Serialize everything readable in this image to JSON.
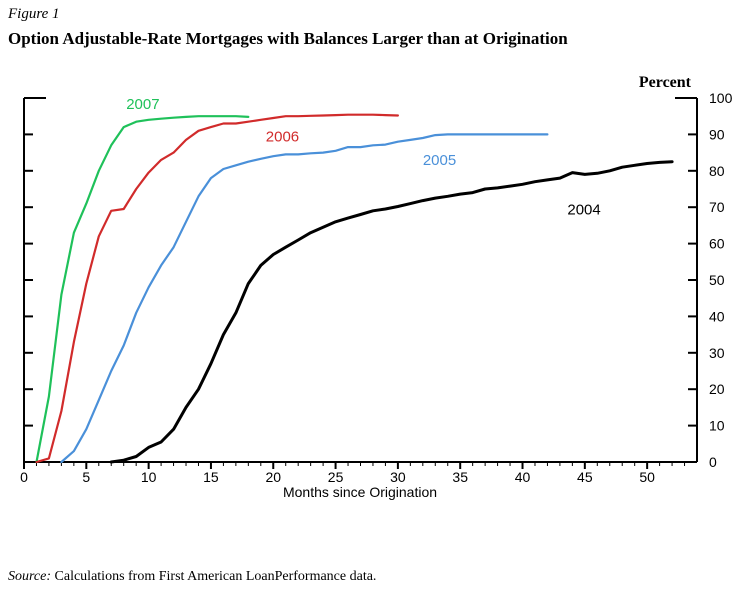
{
  "figure_label": "Figure 1",
  "title": "Option Adjustable-Rate Mortgages with Balances Larger than at Origination",
  "source": {
    "label": "Source:",
    "text": "Calculations from First American LoanPerformance data."
  },
  "chart_data": {
    "type": "line",
    "title": "Option Adjustable-Rate Mortgages with Balances Larger than at Origination",
    "xlabel": "Months since Origination",
    "ylabel": "Percent",
    "xlim": [
      0,
      54
    ],
    "ylim": [
      0,
      100
    ],
    "x_ticks": [
      0,
      5,
      10,
      15,
      20,
      25,
      30,
      35,
      40,
      45,
      50
    ],
    "y_ticks": [
      0,
      10,
      20,
      30,
      40,
      50,
      60,
      70,
      80,
      90,
      100
    ],
    "grid": false,
    "legend": "none (direct labels)",
    "series": [
      {
        "name": "2007",
        "color": "#1fc15a",
        "x": [
          1,
          2,
          3,
          4,
          5,
          6,
          7,
          8,
          9,
          10,
          11,
          12,
          13,
          14,
          15,
          16,
          17,
          18
        ],
        "y": [
          0,
          18,
          46,
          63,
          71,
          80,
          87,
          92,
          93.5,
          94,
          94.3,
          94.6,
          94.8,
          95,
          95,
          95,
          95,
          94.8
        ]
      },
      {
        "name": "2006",
        "color": "#d12b2b",
        "x": [
          1,
          2,
          3,
          4,
          5,
          6,
          7,
          8,
          9,
          10,
          11,
          12,
          13,
          14,
          15,
          16,
          17,
          18,
          19,
          20,
          21,
          22,
          23,
          24,
          25,
          26,
          27,
          28,
          29,
          30
        ],
        "y": [
          0,
          1,
          14,
          33,
          49,
          62,
          69,
          69.5,
          75,
          79.5,
          83,
          85,
          88.5,
          91,
          92,
          93,
          93,
          93.5,
          94,
          94.5,
          95,
          95,
          95.1,
          95.2,
          95.3,
          95.4,
          95.4,
          95.4,
          95.3,
          95.2
        ]
      },
      {
        "name": "2005",
        "color": "#4a90d9",
        "x": [
          3,
          4,
          5,
          6,
          7,
          8,
          9,
          10,
          11,
          12,
          13,
          14,
          15,
          16,
          17,
          18,
          19,
          20,
          21,
          22,
          23,
          24,
          25,
          26,
          27,
          28,
          29,
          30,
          31,
          32,
          33,
          34,
          35,
          36,
          37,
          38,
          39,
          40,
          41,
          42
        ],
        "y": [
          0,
          3,
          9,
          17,
          25,
          32,
          41,
          48,
          54,
          59,
          66,
          73,
          78,
          80.5,
          81.5,
          82.5,
          83.3,
          84,
          84.5,
          84.5,
          84.8,
          85,
          85.5,
          86.5,
          86.5,
          87,
          87.2,
          88,
          88.5,
          89,
          89.8,
          90,
          90,
          90,
          90,
          90,
          90,
          90,
          90,
          90
        ]
      },
      {
        "name": "2004",
        "color": "#000000",
        "x": [
          7,
          8,
          9,
          10,
          11,
          12,
          13,
          14,
          15,
          16,
          17,
          18,
          19,
          20,
          21,
          22,
          23,
          24,
          25,
          26,
          27,
          28,
          29,
          30,
          31,
          32,
          33,
          34,
          35,
          36,
          37,
          38,
          39,
          40,
          41,
          42,
          43,
          44,
          45,
          46,
          47,
          48,
          49,
          50,
          51,
          52
        ],
        "y": [
          0,
          0.5,
          1.5,
          4,
          5.5,
          9,
          15,
          20,
          27,
          35,
          41,
          49,
          54,
          57,
          59,
          61,
          63,
          64.5,
          66,
          67,
          68,
          69,
          69.5,
          70.2,
          71,
          71.8,
          72.5,
          73,
          73.6,
          74,
          75,
          75.3,
          75.8,
          76.3,
          77,
          77.5,
          78,
          79.5,
          79,
          79.3,
          80,
          81,
          81.5,
          82,
          82.3,
          82.5
        ]
      }
    ],
    "annotations": [
      {
        "text": "2007",
        "series": "2007",
        "x": 8.2,
        "y": 97
      },
      {
        "text": "2006",
        "series": "2006",
        "x": 19.4,
        "y": 88
      },
      {
        "text": "2005",
        "series": "2005",
        "x": 32,
        "y": 81.6
      },
      {
        "text": "2004",
        "series": "2004",
        "x": 43.6,
        "y": 68
      }
    ]
  }
}
